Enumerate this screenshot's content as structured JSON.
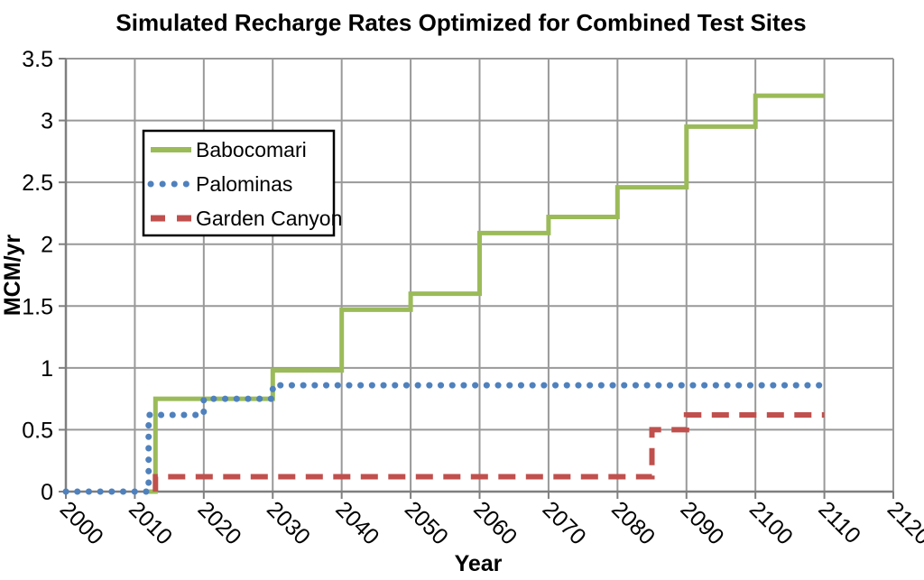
{
  "title": "Simulated Recharge Rates Optimized for Combined Test Sites",
  "x_axis": {
    "label": "Year",
    "min": 2000,
    "max": 2120,
    "tick_labels": [
      "2000",
      "2010",
      "2020",
      "2030",
      "2040",
      "2050",
      "2060",
      "2070",
      "2080",
      "2090",
      "2100",
      "2110",
      "2120"
    ]
  },
  "y_axis": {
    "label": "MCM/yr",
    "min": 0,
    "max": 3.5,
    "tick_labels": [
      "0",
      "0.5",
      "1",
      "1.5",
      "2",
      "2.5",
      "3",
      "3.5"
    ]
  },
  "legend": {
    "entries": [
      {
        "label": "Babocomari",
        "color": "#9BBB59",
        "style": "solid"
      },
      {
        "label": "Palominas",
        "color": "#4F81BD",
        "style": "dotted"
      },
      {
        "label": "Garden Canyon",
        "color": "#C0504D",
        "style": "dashed"
      }
    ]
  },
  "colors": {
    "babocomari": "#9BBB59",
    "palominas": "#4F81BD",
    "garden_canyon": "#C0504D",
    "gridline": "#999999",
    "axis": "#7F7F7F",
    "text": "#000000",
    "background": "#FFFFFF"
  },
  "chart_data": {
    "type": "line",
    "step": true,
    "title": "Simulated Recharge Rates Optimized for Combined Test Sites",
    "xlabel": "Year",
    "ylabel": "MCM/yr",
    "xlim": [
      2000,
      2120
    ],
    "ylim": [
      0,
      3.5
    ],
    "x_tick_step": 10,
    "y_tick_step": 0.5,
    "grid": true,
    "legend_position": "upper-left-inside",
    "series": [
      {
        "id": "babocomari",
        "name": "Babocomari",
        "color": "#9BBB59",
        "style": "solid",
        "points": [
          [
            2012,
            0
          ],
          [
            2013,
            0
          ],
          [
            2013,
            0.75
          ],
          [
            2030,
            0.75
          ],
          [
            2030,
            0.98
          ],
          [
            2040,
            0.98
          ],
          [
            2040,
            1.47
          ],
          [
            2050,
            1.47
          ],
          [
            2050,
            1.6
          ],
          [
            2060,
            1.6
          ],
          [
            2060,
            2.09
          ],
          [
            2070,
            2.09
          ],
          [
            2070,
            2.22
          ],
          [
            2080,
            2.22
          ],
          [
            2080,
            2.46
          ],
          [
            2090,
            2.46
          ],
          [
            2090,
            2.95
          ],
          [
            2100,
            2.95
          ],
          [
            2100,
            3.2
          ],
          [
            2110,
            3.2
          ]
        ]
      },
      {
        "id": "palominas",
        "name": "Palominas",
        "color": "#4F81BD",
        "style": "dotted",
        "points": [
          [
            2000,
            0
          ],
          [
            2012,
            0
          ],
          [
            2012,
            0.62
          ],
          [
            2020,
            0.62
          ],
          [
            2020,
            0.75
          ],
          [
            2030,
            0.75
          ],
          [
            2030,
            0.86
          ],
          [
            2110,
            0.86
          ]
        ]
      },
      {
        "id": "garden_canyon",
        "name": "Garden Canyon",
        "color": "#C0504D",
        "style": "dashed",
        "points": [
          [
            2013,
            0
          ],
          [
            2013,
            0.12
          ],
          [
            2085,
            0.12
          ],
          [
            2085,
            0.5
          ],
          [
            2090,
            0.5
          ],
          [
            2090,
            0.62
          ],
          [
            2110,
            0.62
          ]
        ]
      }
    ]
  }
}
